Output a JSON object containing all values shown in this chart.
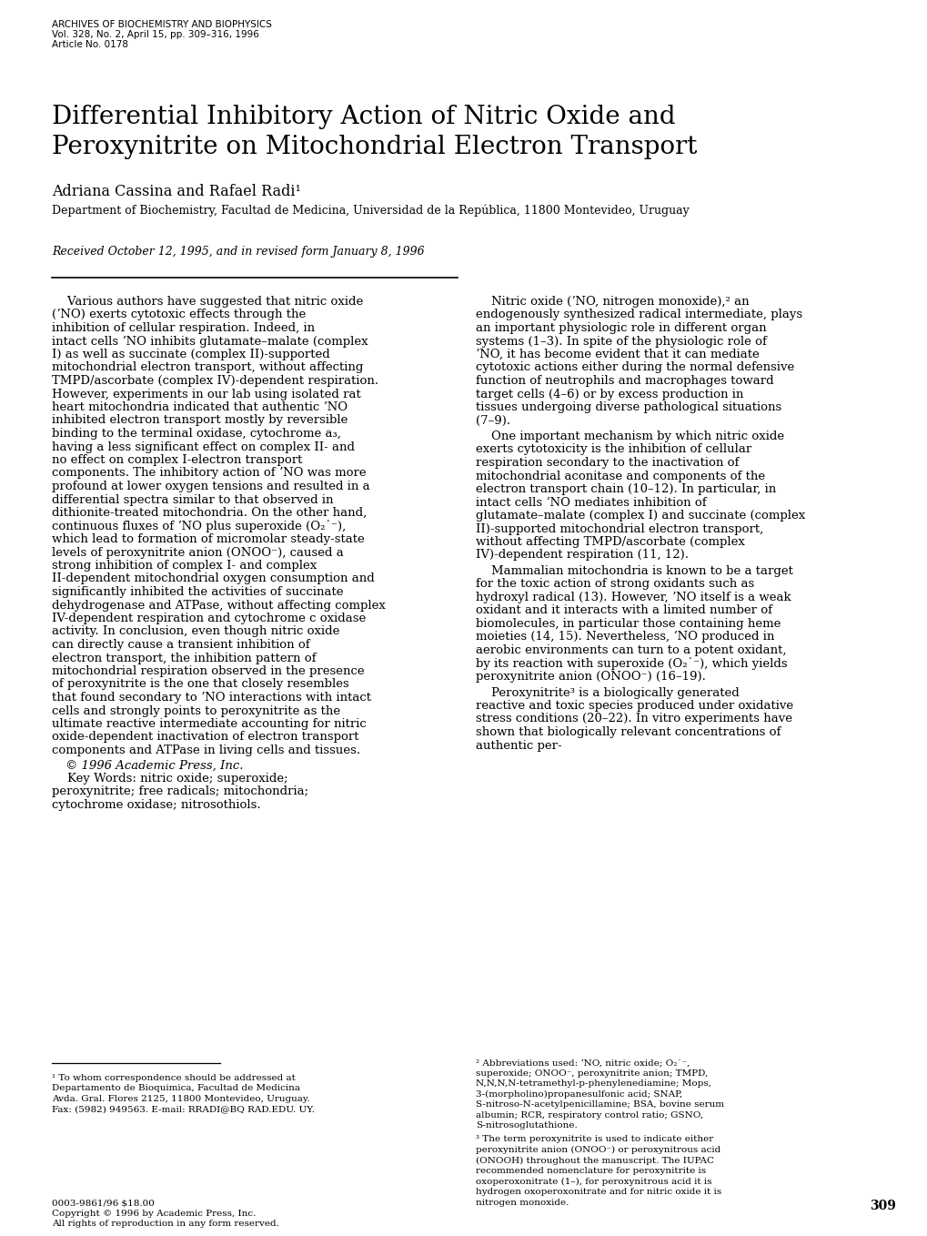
{
  "header_line1": "ARCHIVES OF BIOCHEMISTRY AND BIOPHYSICS",
  "header_line2": "Vol. 328, No. 2, April 15, pp. 309–316, 1996",
  "header_line3": "Article No. 0178",
  "title_line1": "Differential Inhibitory Action of Nitric Oxide and",
  "title_line2": "Peroxynitrite on Mitochondrial Electron Transport",
  "authors": "Adriana Cassina and Rafael Radi¹",
  "affiliation": "Department of Biochemistry, Facultad de Medicina, Universidad de la República, 11800 Montevideo, Uruguay",
  "received": "Received October 12, 1995, and in revised form January 8, 1996",
  "left_col_text": "Various authors have suggested that nitric oxide (ʼNO) exerts cytotoxic effects through the inhibition of cellular respiration. Indeed, in intact cells ʼNO inhibits glutamate–malate (complex I) as well as succinate (complex II)-supported mitochondrial electron transport, without affecting TMPD/ascorbate (complex IV)-dependent respiration. However, experiments in our lab using isolated rat heart mitochondria indicated that authentic ʼNO inhibited electron transport mostly by reversible binding to the terminal oxidase, cytochrome a₃, having a less significant effect on complex II- and no effect on complex I-electron transport components. The inhibitory action of ʼNO was more profound at lower oxygen tensions and resulted in a differential spectra similar to that observed in dithionite-treated mitochondria. On the other hand, continuous fluxes of ʼNO plus superoxide (O₂˙⁻), which lead to formation of micromolar steady-state levels of peroxynitrite anion (ONOO⁻), caused a strong inhibition of complex I- and complex II-dependent mitochondrial oxygen consumption and significantly inhibited the activities of succinate dehydrogenase and ATPase, without affecting complex IV-dependent respiration and cytochrome c oxidase activity. In conclusion, even though nitric oxide can directly cause a transient inhibition of electron transport, the inhibition pattern of mitochondrial respiration observed in the presence of peroxynitrite is the one that closely resembles that found secondary to ʼNO interactions with intact cells and strongly points to peroxynitrite as the ultimate reactive intermediate accounting for nitric oxide-dependent inactivation of electron transport components and ATPase in living cells and tissues.",
  "copyright": "© 1996 Academic Press, Inc.",
  "keywords": "Key Words: nitric oxide; superoxide; peroxynitrite; free radicals; mitochondria; cytochrome oxidase; nitrosothiols.",
  "right_para1": "Nitric oxide (ʼNO, nitrogen monoxide),² an endogenously synthesized radical intermediate, plays an important physiologic role in different organ systems (1–3). In spite of the physiologic role of ʼNO, it has become evident that it can mediate cytotoxic actions either during the normal defensive function of neutrophils and macrophages toward target cells (4–6) or by excess production in tissues undergoing diverse pathological situations (7–9).",
  "right_para2": "One important mechanism by which nitric oxide exerts cytotoxicity is the inhibition of cellular respiration secondary to the inactivation of mitochondrial aconitase and components of the electron transport chain (10–12). In particular, in intact cells ʼNO mediates inhibition of glutamate–malate (complex I) and succinate (complex II)-supported mitochondrial electron transport, without affecting TMPD/ascorbate (complex IV)-dependent respiration (11, 12).",
  "right_para3": "Mammalian mitochondria is known to be a target for the toxic action of strong oxidants such as hydroxyl radical (13). However, ʼNO itself is a weak oxidant and it interacts with a limited number of biomolecules, in particular those containing heme moieties (14, 15). Nevertheless, ʼNO produced in aerobic environments can turn to a potent oxidant, by its reaction with superoxide (O₂˙⁻), which yields peroxynitrite anion (ONOO⁻) (16–19).",
  "right_para4": "Peroxynitrite³ is a biologically generated reactive and toxic species produced under oxidative stress conditions (20–22). In vitro experiments have shown that biologically relevant concentrations of authentic per-",
  "footnote1": "¹ To whom correspondence should be addressed at Departamento de Bioquimica, Facultad de Medicina Avda. Gral. Flores 2125, 11800 Montevideo, Uruguay. Fax: (5982) 949563. E-mail: RRADI@BQ RAD.EDU. UY.",
  "footnote2": "² Abbreviations used: ʼNO, nitric oxide; O₂˙⁻, superoxide; ONOO⁻, peroxynitrite anion; TMPD, N,N,N,N-tetramethyl-p-phenylenediamine; Mops, 3-(morpholino)propanesulfonic acid; SNAP, S-nitroso-N-acetylpenicillamine; BSA, bovine serum albumin; RCR, respiratory control ratio; GSNO, S-nitrosoglutathione.",
  "footnote3": "³ The term peroxynitrite is used to indicate either peroxynitrite anion (ONOO⁻) or peroxynitrous acid (ONOOH) throughout the manuscript. The IUPAC recommended nomenclature for peroxynitrite is oxoperoxonitrate (1–), for peroxynitrous acid it is hydrogen oxoperoxonitrate and for nitric oxide it is nitrogen monoxide.",
  "bottom_left_1": "0003-9861/96 $18.00",
  "bottom_left_2": "Copyright © 1996 by Academic Press, Inc.",
  "bottom_left_3": "All rights of reproduction in any form reserved.",
  "page_number": "309"
}
